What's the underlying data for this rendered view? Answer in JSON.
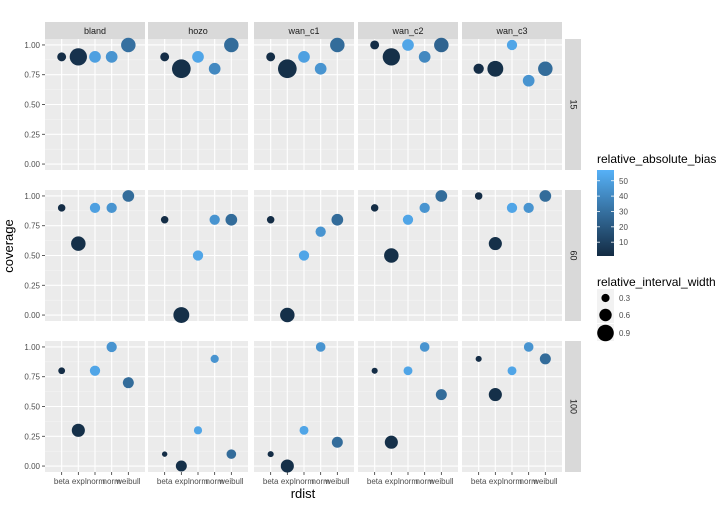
{
  "chart_data": {
    "type": "scatter",
    "xlabel": "rdist",
    "ylabel": "coverage",
    "x_categories": [
      "beta",
      "exp",
      "lnorm",
      "norm",
      "weibull"
    ],
    "ylim": [
      0,
      1
    ],
    "y_ticks": [
      "0.00",
      "0.25",
      "0.50",
      "0.75",
      "1.00"
    ],
    "grid": true,
    "facet_cols": [
      "bland",
      "hozo",
      "wan_c1",
      "wan_c2",
      "wan_c3"
    ],
    "facet_rows": [
      "15",
      "60",
      "100"
    ],
    "color_legend": {
      "title": "relative_absolute_bias",
      "ticks": [
        "10",
        "20",
        "30",
        "40",
        "50"
      ],
      "range": [
        1,
        57
      ],
      "low_color": "#132B43",
      "high_color": "#56B1F7"
    },
    "size_legend": {
      "title": "relative_interval_width",
      "ticks": [
        "0.3",
        "0.6",
        "0.9"
      ]
    },
    "panels": [
      {
        "col": "bland",
        "row": "15",
        "points": [
          {
            "x": "beta",
            "y": 0.9,
            "size": 0.35,
            "bias": 2
          },
          {
            "x": "exp",
            "y": 0.9,
            "size": 0.95,
            "bias": 4
          },
          {
            "x": "lnorm",
            "y": 0.9,
            "size": 0.55,
            "bias": 50
          },
          {
            "x": "norm",
            "y": 0.9,
            "size": 0.55,
            "bias": 45
          },
          {
            "x": "weibull",
            "y": 1.0,
            "size": 0.75,
            "bias": 30
          }
        ]
      },
      {
        "col": "hozo",
        "row": "15",
        "points": [
          {
            "x": "beta",
            "y": 0.9,
            "size": 0.35,
            "bias": 2
          },
          {
            "x": "exp",
            "y": 0.8,
            "size": 1.05,
            "bias": 3
          },
          {
            "x": "lnorm",
            "y": 0.9,
            "size": 0.55,
            "bias": 52
          },
          {
            "x": "norm",
            "y": 0.8,
            "size": 0.55,
            "bias": 40
          },
          {
            "x": "weibull",
            "y": 1.0,
            "size": 0.75,
            "bias": 28
          }
        ]
      },
      {
        "col": "wan_c1",
        "row": "15",
        "points": [
          {
            "x": "beta",
            "y": 0.9,
            "size": 0.35,
            "bias": 2
          },
          {
            "x": "exp",
            "y": 0.8,
            "size": 1.05,
            "bias": 3
          },
          {
            "x": "lnorm",
            "y": 0.9,
            "size": 0.55,
            "bias": 50
          },
          {
            "x": "norm",
            "y": 0.8,
            "size": 0.55,
            "bias": 45
          },
          {
            "x": "weibull",
            "y": 1.0,
            "size": 0.75,
            "bias": 28
          }
        ]
      },
      {
        "col": "wan_c2",
        "row": "15",
        "points": [
          {
            "x": "beta",
            "y": 1.0,
            "size": 0.35,
            "bias": 2
          },
          {
            "x": "exp",
            "y": 0.9,
            "size": 0.95,
            "bias": 3
          },
          {
            "x": "lnorm",
            "y": 1.0,
            "size": 0.55,
            "bias": 52
          },
          {
            "x": "norm",
            "y": 0.9,
            "size": 0.55,
            "bias": 40
          },
          {
            "x": "weibull",
            "y": 1.0,
            "size": 0.75,
            "bias": 25
          }
        ]
      },
      {
        "col": "wan_c3",
        "row": "15",
        "points": [
          {
            "x": "beta",
            "y": 0.8,
            "size": 0.45,
            "bias": 2
          },
          {
            "x": "exp",
            "y": 0.8,
            "size": 0.85,
            "bias": 3
          },
          {
            "x": "lnorm",
            "y": 1.0,
            "size": 0.45,
            "bias": 52
          },
          {
            "x": "norm",
            "y": 0.7,
            "size": 0.55,
            "bias": 45
          },
          {
            "x": "weibull",
            "y": 0.8,
            "size": 0.75,
            "bias": 28
          }
        ]
      },
      {
        "col": "bland",
        "row": "60",
        "points": [
          {
            "x": "beta",
            "y": 0.9,
            "size": 0.25,
            "bias": 2
          },
          {
            "x": "exp",
            "y": 0.6,
            "size": 0.75,
            "bias": 3
          },
          {
            "x": "lnorm",
            "y": 0.9,
            "size": 0.45,
            "bias": 50
          },
          {
            "x": "norm",
            "y": 0.9,
            "size": 0.45,
            "bias": 45
          },
          {
            "x": "weibull",
            "y": 1.0,
            "size": 0.55,
            "bias": 28
          }
        ]
      },
      {
        "col": "hozo",
        "row": "60",
        "points": [
          {
            "x": "beta",
            "y": 0.8,
            "size": 0.25,
            "bias": 2
          },
          {
            "x": "exp",
            "y": 0.0,
            "size": 0.85,
            "bias": 3
          },
          {
            "x": "lnorm",
            "y": 0.5,
            "size": 0.45,
            "bias": 52
          },
          {
            "x": "norm",
            "y": 0.8,
            "size": 0.45,
            "bias": 45
          },
          {
            "x": "weibull",
            "y": 0.8,
            "size": 0.55,
            "bias": 28
          }
        ]
      },
      {
        "col": "wan_c1",
        "row": "60",
        "points": [
          {
            "x": "beta",
            "y": 0.8,
            "size": 0.25,
            "bias": 2
          },
          {
            "x": "exp",
            "y": 0.0,
            "size": 0.75,
            "bias": 3
          },
          {
            "x": "lnorm",
            "y": 0.5,
            "size": 0.45,
            "bias": 52
          },
          {
            "x": "norm",
            "y": 0.7,
            "size": 0.45,
            "bias": 45
          },
          {
            "x": "weibull",
            "y": 0.8,
            "size": 0.55,
            "bias": 28
          }
        ]
      },
      {
        "col": "wan_c2",
        "row": "60",
        "points": [
          {
            "x": "beta",
            "y": 0.9,
            "size": 0.25,
            "bias": 2
          },
          {
            "x": "exp",
            "y": 0.5,
            "size": 0.75,
            "bias": 3
          },
          {
            "x": "lnorm",
            "y": 0.8,
            "size": 0.45,
            "bias": 52
          },
          {
            "x": "norm",
            "y": 0.9,
            "size": 0.45,
            "bias": 45
          },
          {
            "x": "weibull",
            "y": 1.0,
            "size": 0.55,
            "bias": 28
          }
        ]
      },
      {
        "col": "wan_c3",
        "row": "60",
        "points": [
          {
            "x": "beta",
            "y": 1.0,
            "size": 0.25,
            "bias": 2
          },
          {
            "x": "exp",
            "y": 0.6,
            "size": 0.65,
            "bias": 3
          },
          {
            "x": "lnorm",
            "y": 0.9,
            "size": 0.45,
            "bias": 52
          },
          {
            "x": "norm",
            "y": 0.9,
            "size": 0.45,
            "bias": 45
          },
          {
            "x": "weibull",
            "y": 1.0,
            "size": 0.55,
            "bias": 28
          }
        ]
      },
      {
        "col": "bland",
        "row": "100",
        "points": [
          {
            "x": "beta",
            "y": 0.8,
            "size": 0.2,
            "bias": 2
          },
          {
            "x": "exp",
            "y": 0.3,
            "size": 0.65,
            "bias": 3
          },
          {
            "x": "lnorm",
            "y": 0.8,
            "size": 0.45,
            "bias": 52
          },
          {
            "x": "norm",
            "y": 1.0,
            "size": 0.45,
            "bias": 45
          },
          {
            "x": "weibull",
            "y": 0.7,
            "size": 0.5,
            "bias": 28
          }
        ]
      },
      {
        "col": "hozo",
        "row": "100",
        "points": [
          {
            "x": "beta",
            "y": 0.1,
            "size": 0.1,
            "bias": 2
          },
          {
            "x": "exp",
            "y": 0.0,
            "size": 0.5,
            "bias": 3
          },
          {
            "x": "lnorm",
            "y": 0.3,
            "size": 0.3,
            "bias": 52
          },
          {
            "x": "norm",
            "y": 0.9,
            "size": 0.3,
            "bias": 45
          },
          {
            "x": "weibull",
            "y": 0.1,
            "size": 0.4,
            "bias": 28
          }
        ]
      },
      {
        "col": "wan_c1",
        "row": "100",
        "points": [
          {
            "x": "beta",
            "y": 0.1,
            "size": 0.15,
            "bias": 2
          },
          {
            "x": "exp",
            "y": 0.0,
            "size": 0.65,
            "bias": 3
          },
          {
            "x": "lnorm",
            "y": 0.3,
            "size": 0.35,
            "bias": 52
          },
          {
            "x": "norm",
            "y": 1.0,
            "size": 0.4,
            "bias": 45
          },
          {
            "x": "weibull",
            "y": 0.2,
            "size": 0.5,
            "bias": 28
          }
        ]
      },
      {
        "col": "wan_c2",
        "row": "100",
        "points": [
          {
            "x": "beta",
            "y": 0.8,
            "size": 0.15,
            "bias": 2
          },
          {
            "x": "exp",
            "y": 0.2,
            "size": 0.65,
            "bias": 3
          },
          {
            "x": "lnorm",
            "y": 0.8,
            "size": 0.35,
            "bias": 52
          },
          {
            "x": "norm",
            "y": 1.0,
            "size": 0.4,
            "bias": 45
          },
          {
            "x": "weibull",
            "y": 0.6,
            "size": 0.5,
            "bias": 28
          }
        ]
      },
      {
        "col": "wan_c3",
        "row": "100",
        "points": [
          {
            "x": "beta",
            "y": 0.9,
            "size": 0.15,
            "bias": 2
          },
          {
            "x": "exp",
            "y": 0.6,
            "size": 0.65,
            "bias": 3
          },
          {
            "x": "lnorm",
            "y": 0.8,
            "size": 0.35,
            "bias": 52
          },
          {
            "x": "norm",
            "y": 1.0,
            "size": 0.4,
            "bias": 45
          },
          {
            "x": "weibull",
            "y": 0.9,
            "size": 0.5,
            "bias": 28
          }
        ]
      }
    ]
  }
}
